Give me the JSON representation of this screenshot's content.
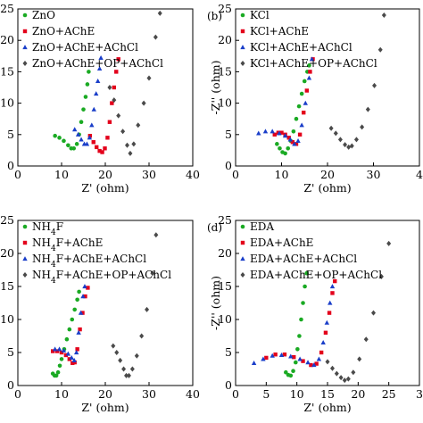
{
  "colors": {
    "s0": "#1aaa23",
    "s1": "#e3001b",
    "s2": "#1a3ec9",
    "s3": "#4a4a4a"
  },
  "chart_data": [
    {
      "type": "scatter",
      "panel_label": "",
      "title": "",
      "xlabel": "Z' (ohm)",
      "ylabel": "",
      "xlim": [
        0,
        40
      ],
      "ylim": [
        0,
        25
      ],
      "x_ticks": [
        "0",
        "10",
        "20",
        "30",
        "40"
      ],
      "y_ticks": [
        "0",
        "5",
        "10",
        "15",
        "20",
        "25"
      ],
      "legend_position": "top-left",
      "series": [
        {
          "name": "ZnO",
          "marker": "circle",
          "x": [
            8.5,
            9.5,
            10.5,
            11.5,
            12.2,
            12.8,
            13.5,
            14.0,
            14.5,
            15.0,
            15.5,
            15.9,
            16.2
          ],
          "y": [
            4.8,
            4.5,
            4.0,
            3.3,
            2.8,
            2.8,
            3.5,
            5.0,
            7.0,
            9.0,
            11.0,
            13.0,
            15.0
          ]
        },
        {
          "name": "ZnO+AChE",
          "marker": "square",
          "x": [
            16.5,
            17.3,
            18.0,
            18.7,
            19.3,
            19.9,
            20.5,
            21.0,
            21.5,
            22.0,
            22.5,
            23.0
          ],
          "y": [
            4.8,
            3.8,
            3.0,
            2.4,
            2.2,
            2.8,
            4.5,
            7.0,
            10.0,
            12.5,
            15.0,
            17.0
          ]
        },
        {
          "name": "ZnO+AChE+AChCl",
          "marker": "triangle",
          "x": [
            13.0,
            13.8,
            14.5,
            15.2,
            15.8,
            16.4,
            16.9,
            17.4,
            17.9,
            18.3,
            18.7,
            19.0
          ],
          "y": [
            5.8,
            5.0,
            4.2,
            3.5,
            3.5,
            4.5,
            6.5,
            9.0,
            11.5,
            13.5,
            15.5,
            17.2
          ]
        },
        {
          "name": "ZnO+AChE+OP+AChCl",
          "marker": "diamond",
          "x": [
            21.0,
            22.0,
            23.0,
            24.0,
            25.0,
            25.7,
            26.5,
            27.5,
            28.8,
            30.0,
            31.5,
            32.5
          ],
          "y": [
            12.5,
            10.5,
            8.0,
            5.5,
            3.3,
            2.0,
            3.5,
            6.5,
            10.0,
            14.0,
            20.5,
            24.3
          ]
        }
      ]
    },
    {
      "type": "scatter",
      "panel_label": "(b)",
      "title": "",
      "xlabel": "Z' (ohm)",
      "ylabel": "-Z'' (ohm)",
      "xlim": [
        0,
        40
      ],
      "ylim": [
        0,
        25
      ],
      "x_ticks": [
        "0",
        "10",
        "20",
        "30",
        "4"
      ],
      "y_ticks": [
        "0",
        "5",
        "10",
        "15",
        "20",
        "25"
      ],
      "legend_position": "top-left",
      "series": [
        {
          "name": "KCl",
          "marker": "circle",
          "x": [
            9.0,
            9.6,
            10.2,
            10.8,
            11.4,
            12.0,
            12.6,
            13.2,
            13.8,
            14.4,
            15.0,
            15.6,
            16.0
          ],
          "y": [
            3.5,
            2.8,
            2.2,
            2.0,
            2.8,
            4.0,
            5.5,
            7.5,
            9.5,
            11.5,
            13.5,
            15.0,
            16.0
          ]
        },
        {
          "name": "KCl+AChE",
          "marker": "square",
          "x": [
            8.5,
            9.3,
            10.0,
            10.8,
            11.6,
            12.4,
            13.2,
            14.0,
            14.8,
            15.5,
            16.2,
            16.8
          ],
          "y": [
            5.0,
            5.3,
            5.3,
            5.0,
            4.5,
            3.8,
            3.5,
            5.0,
            8.5,
            12.0,
            15.0,
            17.0
          ]
        },
        {
          "name": "KCl+AChE+AChCl",
          "marker": "triangle",
          "x": [
            5.0,
            6.5,
            8.0,
            9.5,
            10.8,
            11.9,
            12.8,
            13.6,
            14.4,
            15.2,
            16.0,
            16.6
          ],
          "y": [
            5.2,
            5.5,
            5.5,
            5.2,
            4.8,
            4.2,
            3.5,
            4.0,
            6.5,
            10.0,
            14.0,
            17.0
          ]
        },
        {
          "name": "KCl+AChE+OP+AChCl",
          "marker": "diamond",
          "x": [
            20.8,
            21.8,
            22.8,
            23.8,
            24.6,
            25.3,
            26.3,
            27.5,
            28.8,
            30.2,
            31.5,
            32.3
          ],
          "y": [
            6.0,
            5.2,
            4.2,
            3.4,
            3.0,
            3.2,
            4.2,
            6.2,
            9.0,
            12.8,
            18.5,
            24.0
          ]
        }
      ]
    },
    {
      "type": "scatter",
      "panel_label": "",
      "title": "",
      "xlabel": "Z' (ohm)",
      "ylabel": "",
      "xlim": [
        0,
        40
      ],
      "ylim": [
        0,
        25
      ],
      "x_ticks": [
        "0",
        "10",
        "20",
        "30",
        "40"
      ],
      "y_ticks": [
        "0",
        "5",
        "10",
        "15",
        "20",
        "25"
      ],
      "legend_position": "top-left",
      "series": [
        {
          "name": "NH4F",
          "marker": "circle",
          "x": [
            8.0,
            8.4,
            8.8,
            9.2,
            9.6,
            10.0,
            10.6,
            11.2,
            11.8,
            12.4,
            13.0,
            13.6,
            14.0
          ],
          "y": [
            1.8,
            1.5,
            1.5,
            2.0,
            3.0,
            4.0,
            5.5,
            7.0,
            8.5,
            10.0,
            11.5,
            13.0,
            14.2
          ]
        },
        {
          "name": "NH4F+AChE",
          "marker": "square",
          "x": [
            8.0,
            9.0,
            10.0,
            11.0,
            11.8,
            12.5,
            13.0,
            13.6,
            14.2,
            14.8,
            15.4,
            16.0
          ],
          "y": [
            5.2,
            5.2,
            5.0,
            4.6,
            4.0,
            3.4,
            3.5,
            5.5,
            8.5,
            11.0,
            13.5,
            14.8
          ]
        },
        {
          "name": "NH4F+AChE+AChCl",
          "marker": "triangle",
          "x": [
            8.5,
            9.5,
            10.5,
            11.5,
            12.3,
            12.9,
            13.4,
            13.9,
            14.4,
            14.9,
            15.3
          ],
          "y": [
            5.5,
            5.5,
            5.3,
            4.8,
            4.2,
            3.8,
            5.0,
            8.0,
            11.0,
            13.5,
            15.0
          ]
        },
        {
          "name": "NH4F+AChE+OP+AChCl",
          "marker": "diamond",
          "x": [
            21.8,
            22.6,
            23.4,
            24.2,
            24.8,
            25.4,
            26.2,
            27.2,
            28.3,
            29.5,
            30.8,
            31.6
          ],
          "y": [
            6.0,
            5.0,
            3.8,
            2.5,
            1.5,
            1.5,
            2.5,
            4.5,
            7.5,
            11.5,
            17.0,
            22.8
          ]
        }
      ]
    },
    {
      "type": "scatter",
      "panel_label": "(d)",
      "title": "",
      "xlabel": "Z' (ohm)",
      "ylabel": "-Z'' (ohm)",
      "xlim": [
        0,
        30
      ],
      "ylim": [
        0,
        25
      ],
      "x_ticks": [
        "0",
        "5",
        "10",
        "15",
        "20",
        "25",
        "3"
      ],
      "y_ticks": [
        "0",
        "5",
        "10",
        "15",
        "20",
        "25"
      ],
      "legend_position": "top-left",
      "series": [
        {
          "name": "EDA",
          "marker": "circle",
          "x": [
            8.2,
            8.6,
            9.0,
            9.4,
            9.8,
            10.1,
            10.4,
            10.7,
            11.0,
            11.3,
            11.6
          ],
          "y": [
            2.0,
            1.6,
            1.5,
            2.2,
            3.5,
            5.5,
            7.5,
            10.0,
            12.5,
            15.0,
            17.0
          ]
        },
        {
          "name": "EDA+AChE",
          "marker": "square",
          "x": [
            5.0,
            6.5,
            8.0,
            9.5,
            11.0,
            12.3,
            13.2,
            14.0,
            14.7,
            15.3,
            15.8,
            16.2
          ],
          "y": [
            4.2,
            4.7,
            4.7,
            4.3,
            3.7,
            3.1,
            3.3,
            5.0,
            8.0,
            11.0,
            14.0,
            15.8
          ]
        },
        {
          "name": "EDA+AChE+AChCl",
          "marker": "triangle",
          "x": [
            3.0,
            4.5,
            6.0,
            7.5,
            9.0,
            10.5,
            11.8,
            12.8,
            13.6,
            14.3,
            14.9,
            15.4,
            15.8
          ],
          "y": [
            3.4,
            4.0,
            4.5,
            4.6,
            4.4,
            4.0,
            3.5,
            3.1,
            4.0,
            6.5,
            9.5,
            12.5,
            15.0
          ]
        },
        {
          "name": "EDA+AChE+OP+AChCl",
          "marker": "diamond",
          "x": [
            15.0,
            15.8,
            16.5,
            17.2,
            17.8,
            18.4,
            19.2,
            20.2,
            21.3,
            22.5,
            23.8,
            25.0
          ],
          "y": [
            3.6,
            2.6,
            1.8,
            1.2,
            0.8,
            1.0,
            2.0,
            4.0,
            7.0,
            11.0,
            16.5,
            21.5
          ]
        }
      ]
    }
  ]
}
